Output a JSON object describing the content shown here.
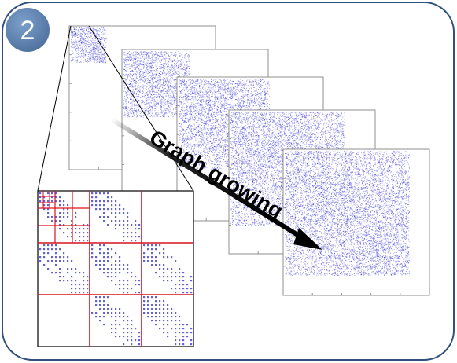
{
  "badge": {
    "number": "2",
    "color": "#5b7fae"
  },
  "arrow": {
    "label": "Graph growing"
  },
  "colors": {
    "frame_border": "#2f4f7f",
    "dots": "#2b2bd6",
    "grid_lines": "#d9141e",
    "panel_border": "#8f8f8f"
  },
  "panels": [
    {
      "fill": 0.24
    },
    {
      "fill": 0.45
    },
    {
      "fill": 0.62
    },
    {
      "fill": 0.78
    },
    {
      "fill": 0.85
    }
  ]
}
